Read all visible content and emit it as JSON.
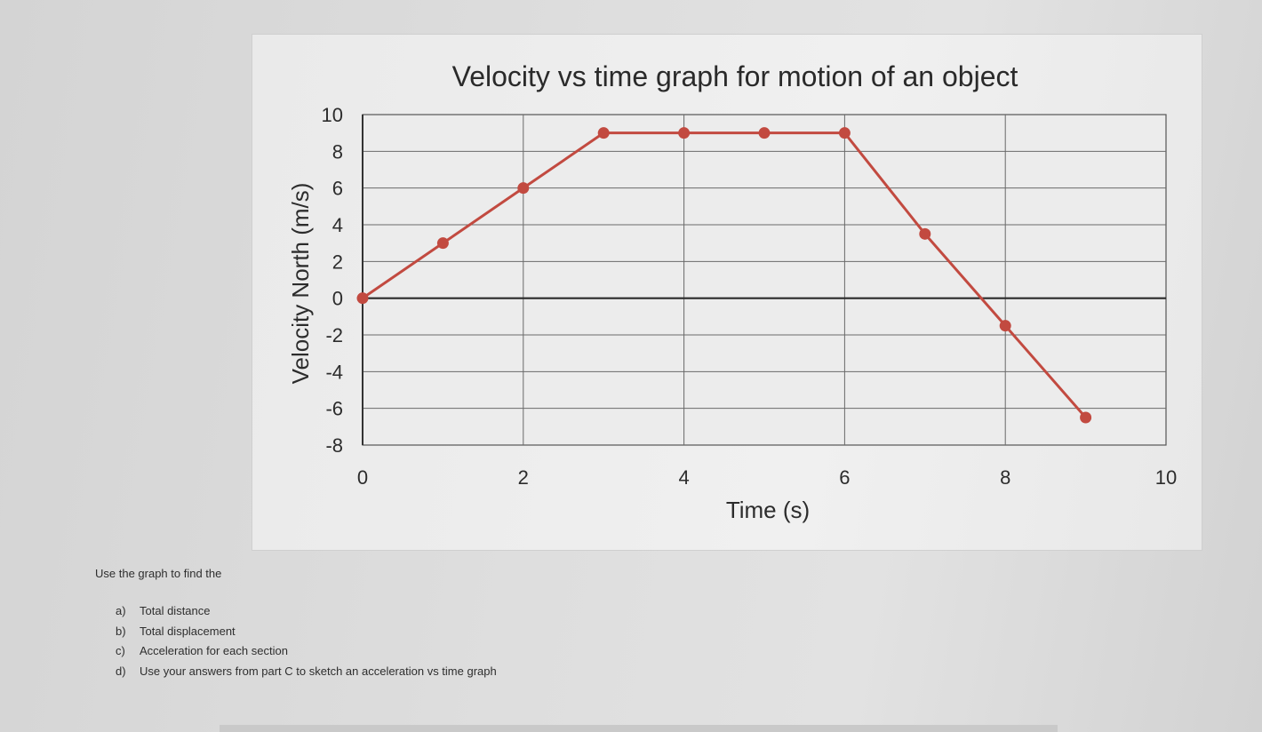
{
  "chart_data": {
    "type": "line",
    "title": "Velocity vs time graph for motion of an object",
    "xlabel": "Time (s)",
    "ylabel": "Velocity North (m/s)",
    "xlim": [
      0,
      10
    ],
    "ylim": [
      -8,
      10
    ],
    "xticks": [
      "0",
      "2",
      "4",
      "6",
      "8",
      "10"
    ],
    "yticks": [
      "10",
      "8",
      "6",
      "4",
      "2",
      "0",
      "-2",
      "-4",
      "-6",
      "-8"
    ],
    "grid": true,
    "series": [
      {
        "x": [
          0,
          1,
          2,
          3,
          4,
          5,
          6,
          7,
          8,
          9
        ],
        "y": [
          0,
          3,
          6,
          9,
          9,
          9,
          9,
          3.5,
          -1.5,
          -6.5
        ],
        "color": "#c24a40"
      }
    ]
  },
  "questions": {
    "intro": "Use the graph to find the",
    "items": [
      {
        "label": "a)",
        "text": "Total distance"
      },
      {
        "label": "b)",
        "text": "Total displacement"
      },
      {
        "label": "c)",
        "text": "Acceleration for each section"
      },
      {
        "label": "d)",
        "text": "Use your answers from part C to sketch an acceleration vs time graph"
      }
    ]
  }
}
